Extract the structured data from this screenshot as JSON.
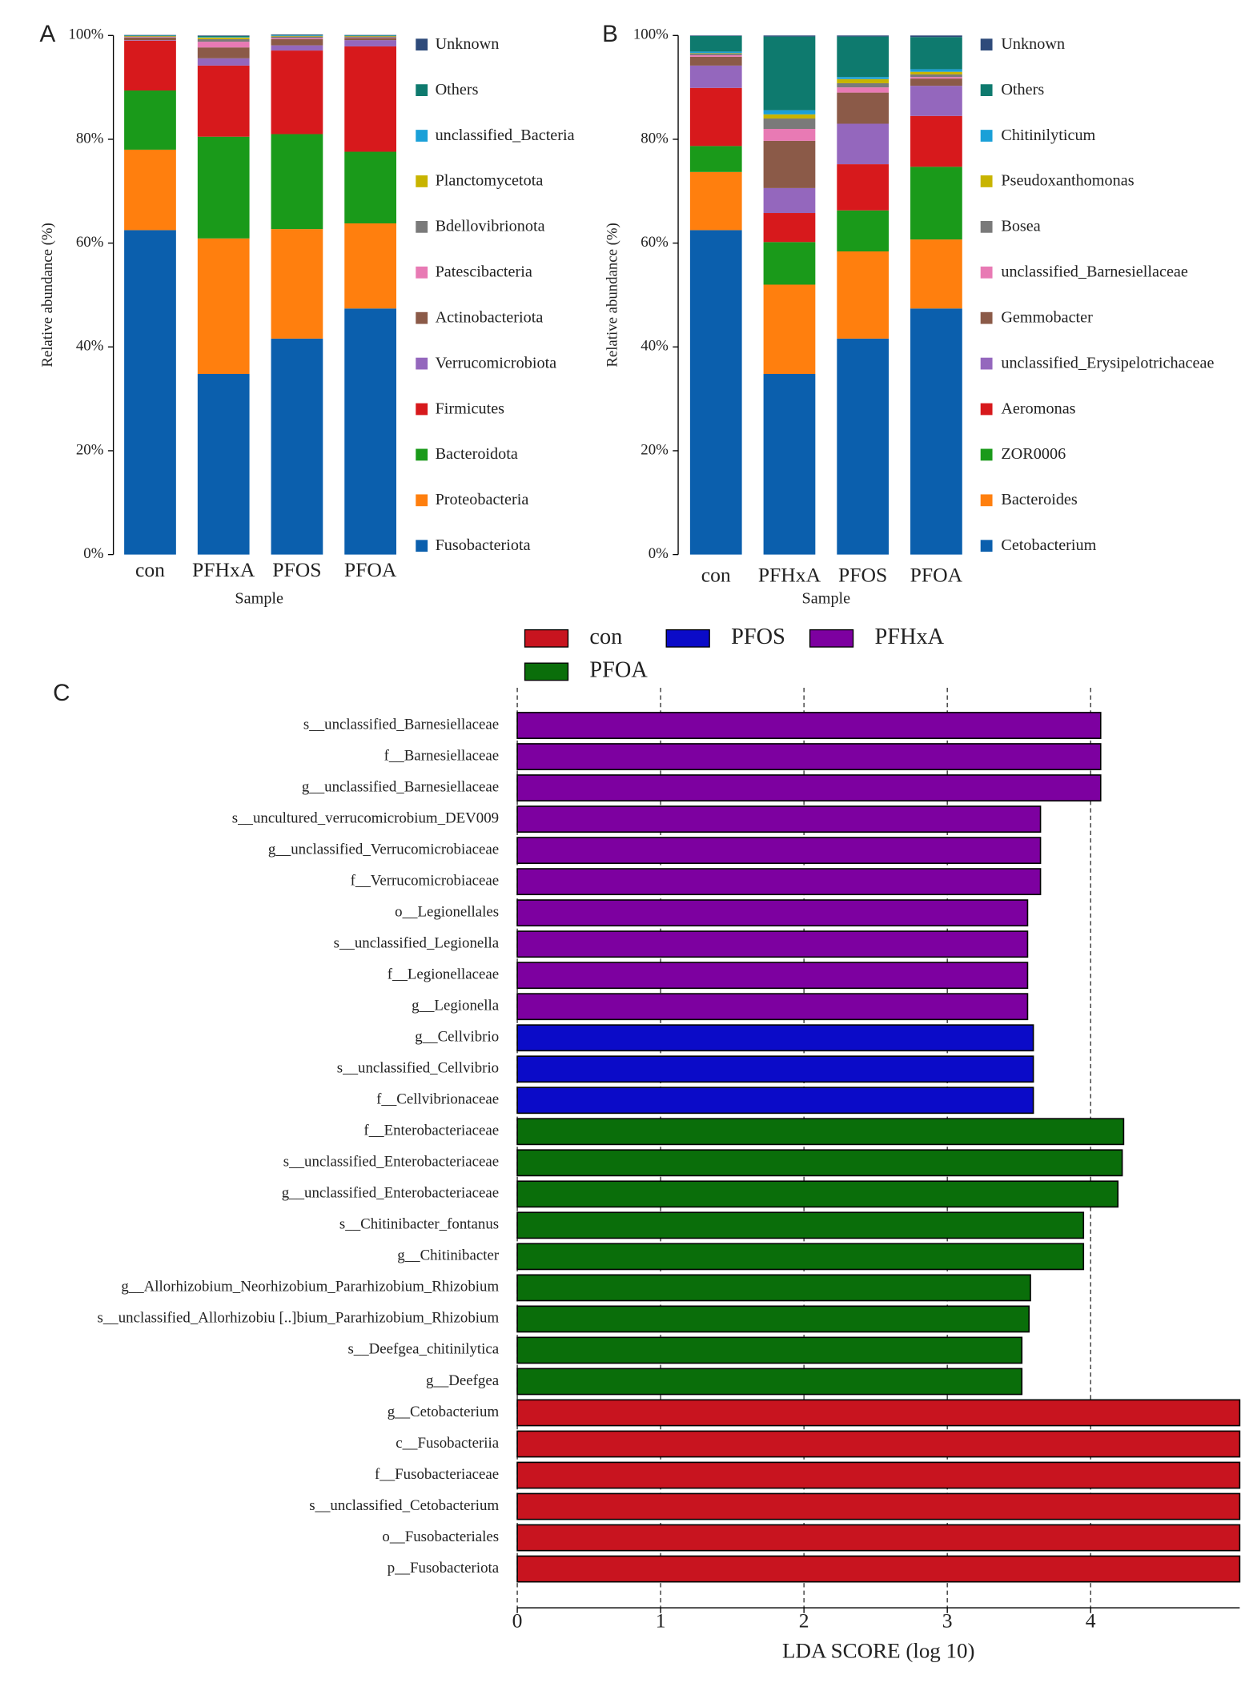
{
  "chart_data": [
    {
      "type": "stacked_bar",
      "panel": "A",
      "ylabel": "Relative abundance (%)",
      "xlabel": "Sample",
      "categories": [
        "con",
        "PFHxA",
        "PFOS",
        "PFOA"
      ],
      "ylim": [
        0,
        100
      ],
      "yticks": [
        {
          "value": 0,
          "label": "0%"
        },
        {
          "value": 20,
          "label": "20%"
        },
        {
          "value": 40,
          "label": "40%"
        },
        {
          "value": 60,
          "label": "60%"
        },
        {
          "value": 80,
          "label": "80%"
        },
        {
          "value": 100,
          "label": "100%"
        }
      ],
      "series": [
        {
          "name": "Fusobacteriota",
          "color": "#0b5fad",
          "values": [
            62.5,
            34.8,
            41.6,
            47.4
          ]
        },
        {
          "name": "Proteobacteria",
          "color": "#ff7f0e",
          "values": [
            15.5,
            26.1,
            21.1,
            16.4
          ]
        },
        {
          "name": "Bacteroidota",
          "color": "#1a9a1a",
          "values": [
            11.4,
            19.6,
            18.3,
            13.8
          ]
        },
        {
          "name": "Firmicutes",
          "color": "#d7191c",
          "values": [
            9.6,
            13.7,
            16.1,
            20.3
          ]
        },
        {
          "name": "Verrucomicrobiota",
          "color": "#9467bd",
          "values": [
            0.1,
            1.4,
            1.0,
            1.2
          ]
        },
        {
          "name": "Actinobacteriota",
          "color": "#8b5a48",
          "values": [
            0.5,
            2.1,
            1.2,
            0.4
          ]
        },
        {
          "name": "Patescibacteria",
          "color": "#e87ab4",
          "values": [
            0.1,
            1.1,
            0.2,
            0.1
          ]
        },
        {
          "name": "Bdellovibrionota",
          "color": "#7a7a7a",
          "values": [
            0.1,
            0.5,
            0.3,
            0.2
          ]
        },
        {
          "name": "Planctomycetota",
          "color": "#c8b400",
          "values": [
            0.1,
            0.3,
            0.1,
            0.1
          ]
        },
        {
          "name": "unclassified_Bacteria",
          "color": "#1aa0d8",
          "values": [
            0.05,
            0.1,
            0.1,
            0.05
          ]
        },
        {
          "name": "Others",
          "color": "#0e7a6e",
          "values": [
            0.1,
            0.2,
            0.1,
            0.1
          ]
        },
        {
          "name": "Unknown",
          "color": "#2e4a7a",
          "values": [
            0.05,
            0.1,
            0.1,
            0.05
          ]
        }
      ]
    },
    {
      "type": "stacked_bar",
      "panel": "B",
      "ylabel": "Relative abundance (%)",
      "xlabel": "Sample",
      "categories": [
        "con",
        "PFHxA",
        "PFOS",
        "PFOA"
      ],
      "ylim": [
        0,
        100
      ],
      "yticks": [
        {
          "value": 0,
          "label": "0%"
        },
        {
          "value": 20,
          "label": "20%"
        },
        {
          "value": 40,
          "label": "40%"
        },
        {
          "value": 60,
          "label": "60%"
        },
        {
          "value": 80,
          "label": "80%"
        },
        {
          "value": 100,
          "label": "100%"
        }
      ],
      "series": [
        {
          "name": "Cetobacterium",
          "color": "#0b5fad",
          "values": [
            62.5,
            34.8,
            41.6,
            47.4
          ]
        },
        {
          "name": "Bacteroides",
          "color": "#ff7f0e",
          "values": [
            11.2,
            17.2,
            16.8,
            13.3
          ]
        },
        {
          "name": "ZOR0006",
          "color": "#1a9a1a",
          "values": [
            5.0,
            8.2,
            7.9,
            14.0
          ]
        },
        {
          "name": "Aeromonas",
          "color": "#d7191c",
          "values": [
            11.2,
            5.6,
            8.9,
            9.8
          ]
        },
        {
          "name": "unclassified_Erysipelotrichaceae",
          "color": "#9467bd",
          "values": [
            4.3,
            4.8,
            7.8,
            5.8
          ]
        },
        {
          "name": "Gemmobacter",
          "color": "#8b5a48",
          "values": [
            1.7,
            9.1,
            6.0,
            1.4
          ]
        },
        {
          "name": "unclassified_Barnesiellaceae",
          "color": "#e87ab4",
          "values": [
            0.3,
            2.3,
            1.0,
            0.3
          ]
        },
        {
          "name": "Bosea",
          "color": "#7a7a7a",
          "values": [
            0.3,
            2.0,
            0.8,
            0.5
          ]
        },
        {
          "name": "Pseudoxanthomonas",
          "color": "#c8b400",
          "values": [
            0.1,
            0.8,
            0.8,
            0.5
          ]
        },
        {
          "name": "Chitinilyticum",
          "color": "#1aa0d8",
          "values": [
            0.3,
            0.8,
            0.4,
            0.5
          ]
        },
        {
          "name": "Others",
          "color": "#0e7a6e",
          "values": [
            3.0,
            14.2,
            7.8,
            6.2
          ]
        },
        {
          "name": "Unknown",
          "color": "#2e4a7a",
          "values": [
            0.1,
            0.2,
            0.2,
            0.3
          ]
        }
      ]
    },
    {
      "type": "hbar",
      "panel": "C",
      "xlabel": "LDA SCORE (log 10)",
      "xlim": [
        0,
        5.04
      ],
      "xticks": [
        0,
        1,
        2,
        3,
        4
      ],
      "grid": true,
      "categories": [
        "s__unclassified_Barnesiellaceae",
        "f__Barnesiellaceae",
        "g__unclassified_Barnesiellaceae",
        "s__uncultured_verrucomicrobium_DEV009",
        "g__unclassified_Verrucomicrobiaceae",
        "f__Verrucomicrobiaceae",
        "o__Legionellales",
        "s__unclassified_Legionella",
        "f__Legionellaceae",
        "g__Legionella",
        "g__Cellvibrio",
        "s__unclassified_Cellvibrio",
        "f__Cellvibrionaceae",
        "f__Enterobacteriaceae",
        "s__unclassified_Enterobacteriaceae",
        "g__unclassified_Enterobacteriaceae",
        "s__Chitinibacter_fontanus",
        "g__Chitinibacter",
        "g__Allorhizobium_Neorhizobium_Pararhizobium_Rhizobium",
        "s__unclassified_Allorhizobiu [..]bium_Pararhizobium_Rhizobium",
        "s__Deefgea_chitinilytica",
        "g__Deefgea",
        "g__Cetobacterium",
        "c__Fusobacteriia",
        "f__Fusobacteriaceae",
        "s__unclassified_Cetobacterium",
        "o__Fusobacteriales",
        "p__Fusobacteriota"
      ],
      "series": [
        {
          "name": "con",
          "color": "#c8141f",
          "values": [
            null,
            null,
            null,
            null,
            null,
            null,
            null,
            null,
            null,
            null,
            null,
            null,
            null,
            null,
            null,
            null,
            null,
            null,
            null,
            null,
            null,
            null,
            5.04,
            5.04,
            5.04,
            5.04,
            5.04,
            5.04
          ]
        },
        {
          "name": "PFOS",
          "color": "#0b0bc8",
          "values": [
            null,
            null,
            null,
            null,
            null,
            null,
            null,
            null,
            null,
            null,
            3.6,
            3.6,
            3.6,
            null,
            null,
            null,
            null,
            null,
            null,
            null,
            null,
            null,
            null,
            null,
            null,
            null,
            null,
            null
          ]
        },
        {
          "name": "PFHxA",
          "color": "#7d00a0",
          "values": [
            4.07,
            4.07,
            4.07,
            3.65,
            3.65,
            3.65,
            3.56,
            3.56,
            3.56,
            3.56,
            null,
            null,
            null,
            null,
            null,
            null,
            null,
            null,
            null,
            null,
            null,
            null,
            null,
            null,
            null,
            null,
            null,
            null
          ]
        },
        {
          "name": "PFOA",
          "color": "#0a6e0a",
          "values": [
            null,
            null,
            null,
            null,
            null,
            null,
            null,
            null,
            null,
            null,
            null,
            null,
            null,
            4.23,
            4.22,
            4.19,
            3.95,
            3.95,
            3.58,
            3.57,
            3.52,
            3.52,
            null,
            null,
            null,
            null,
            null,
            null
          ]
        }
      ]
    }
  ]
}
